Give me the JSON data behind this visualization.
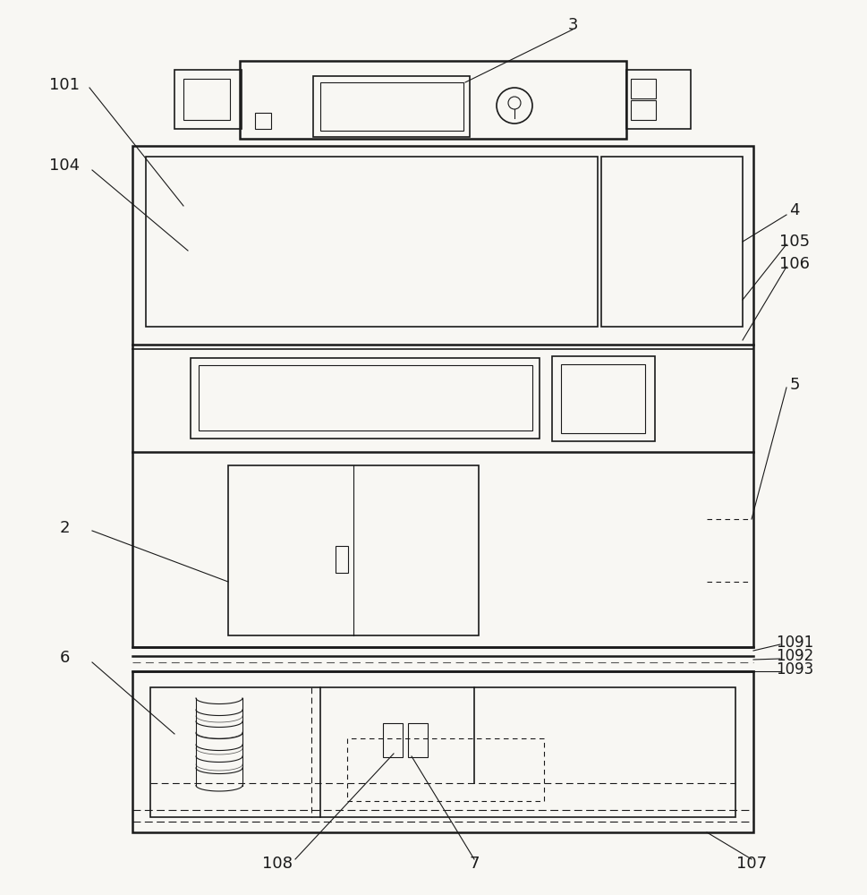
{
  "fig_width": 9.69,
  "fig_height": 10.0,
  "bg_color": "#f8f7f3",
  "line_color": "#1a1a1a",
  "lw_main": 1.8,
  "lw_med": 1.2,
  "lw_thin": 0.8
}
